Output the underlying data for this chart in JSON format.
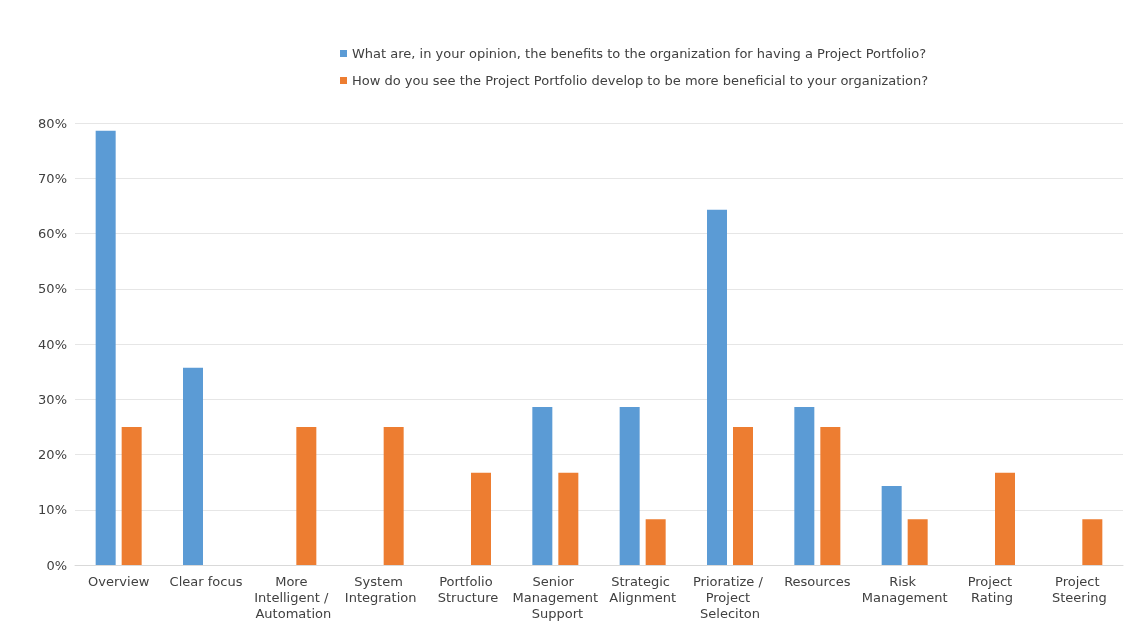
{
  "chart_data": {
    "type": "bar",
    "categories": [
      "Overview",
      "Clear focus",
      "More Intelligent / Automation",
      "System Integration",
      "Portfolio Structure",
      "Senior Management Support",
      "Strategic Alignment",
      "Prioratize / Project Seleciton",
      "Resources",
      "Risk Management",
      "Project Rating",
      "Project Steering"
    ],
    "series": [
      {
        "name": "What are, in your opinion, the benefits to the organization for having a Project Portfolio?",
        "color": "#5b9bd5",
        "values": [
          78.6,
          35.7,
          null,
          null,
          null,
          28.6,
          28.6,
          64.3,
          28.6,
          14.3,
          null,
          null
        ]
      },
      {
        "name": "How do you see the Project Portfolio develop to be more beneficial to your organization?",
        "color": "#ed7d31",
        "values": [
          25,
          null,
          25,
          25,
          16.7,
          16.7,
          8.3,
          25,
          25,
          8.3,
          16.7,
          8.3
        ]
      }
    ],
    "ylim": [
      0,
      80
    ],
    "yticks": [
      {
        "value": 0,
        "label": "0%"
      },
      {
        "value": 10,
        "label": "10%"
      },
      {
        "value": 20,
        "label": "20%"
      },
      {
        "value": 30,
        "label": "30%"
      },
      {
        "value": 40,
        "label": "40%"
      },
      {
        "value": 50,
        "label": "50%"
      },
      {
        "value": 60,
        "label": "60%"
      },
      {
        "value": 70,
        "label": "70%"
      },
      {
        "value": 80,
        "label": "80%"
      }
    ],
    "grid": "y",
    "legend": "top"
  }
}
